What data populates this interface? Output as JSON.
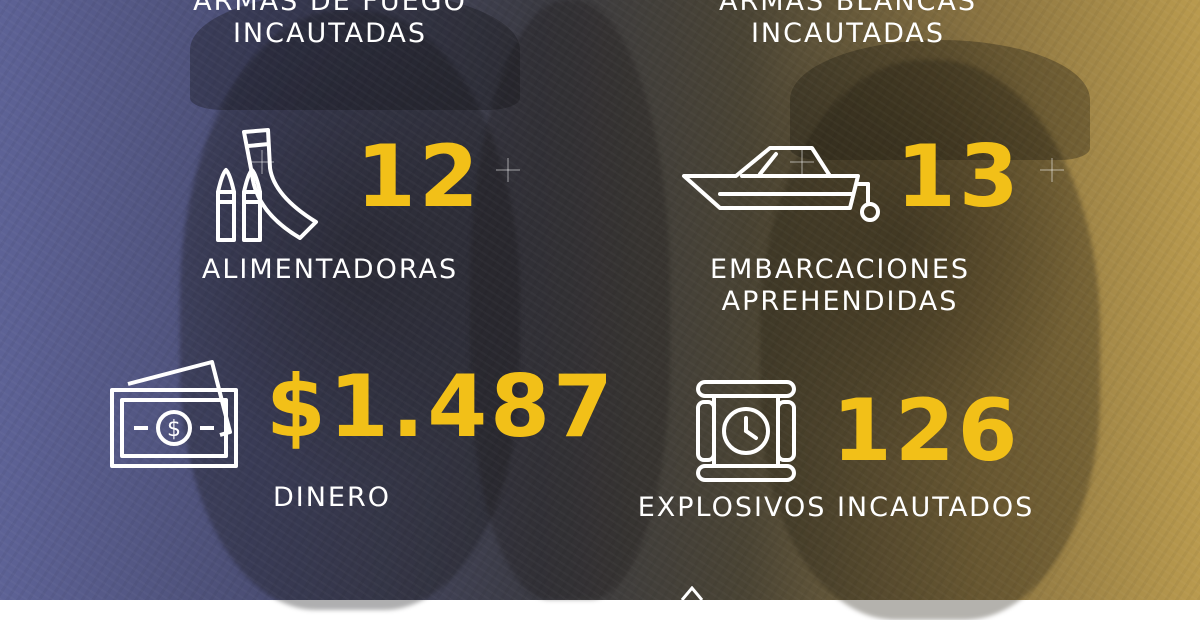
{
  "stats": {
    "armas_fuego": {
      "label_line1": "ARMAS DE FUEGO",
      "label_line2": "INCAUTADAS"
    },
    "armas_blancas": {
      "label_line1": "ARMAS BLANCAS",
      "label_line2": "INCAUTADAS"
    },
    "alimentadoras": {
      "value": "12",
      "label": "ALIMENTADORAS",
      "icon": "ammunition-icon"
    },
    "embarcaciones": {
      "value": "13",
      "label_line1": "EMBARCACIONES",
      "label_line2": "APREHENDIDAS",
      "icon": "boat-icon"
    },
    "dinero": {
      "value": "$1.487",
      "label": "DINERO",
      "icon": "money-icon"
    },
    "explosivos": {
      "value": "126",
      "label": "EXPLOSIVOS INCAUTADOS",
      "icon": "explosive-icon"
    }
  },
  "colors": {
    "accent": "#f2c018",
    "text": "#ffffff"
  }
}
